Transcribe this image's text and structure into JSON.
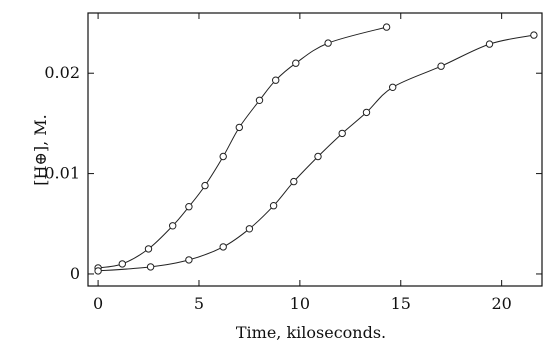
{
  "chart_data": {
    "type": "scatter",
    "title": "",
    "xlabel": "Time, kiloseconds.",
    "ylabel": "[H⊕], M.",
    "xlim": [
      -0.5,
      22
    ],
    "ylim": [
      -0.0012,
      0.026
    ],
    "grid": false,
    "x_ticks": [
      0,
      5,
      10,
      15,
      20
    ],
    "x_tick_labels": [
      "0",
      "5",
      "10",
      "15",
      "20"
    ],
    "y_ticks": [
      0,
      0.01,
      0.02
    ],
    "y_tick_labels": [
      "0",
      "0.01",
      "0.02"
    ],
    "series": [
      {
        "x": [
          0.0,
          1.2,
          2.5,
          3.7,
          4.5,
          5.3,
          6.2,
          7.0,
          8.0,
          8.8,
          9.8,
          11.4,
          14.3
        ],
        "y": [
          0.0006,
          0.001,
          0.0025,
          0.0048,
          0.0067,
          0.0088,
          0.0117,
          0.0146,
          0.0173,
          0.0193,
          0.021,
          0.023,
          0.0246
        ]
      },
      {
        "x": [
          0.0,
          2.6,
          4.5,
          6.2,
          7.5,
          8.7,
          9.7,
          10.9,
          12.1,
          13.3,
          14.6,
          17.0,
          19.4,
          21.6
        ],
        "y": [
          0.0003,
          0.0007,
          0.0014,
          0.0027,
          0.0045,
          0.0068,
          0.0092,
          0.0117,
          0.014,
          0.0161,
          0.0186,
          0.0207,
          0.0229,
          0.0238
        ]
      }
    ]
  }
}
